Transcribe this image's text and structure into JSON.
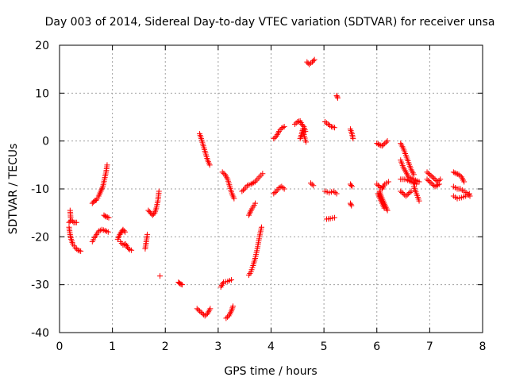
{
  "chart_data": {
    "type": "scatter",
    "title": "Day 003 of 2014, Sidereal Day-to-day VTEC variation (SDTVAR) for receiver unsa",
    "xlabel": "GPS time / hours",
    "ylabel": "SDTVAR / TECUs",
    "xlim": [
      0,
      8
    ],
    "ylim": [
      -40,
      20
    ],
    "xticks": [
      0,
      1,
      2,
      3,
      4,
      5,
      6,
      7,
      8
    ],
    "yticks": [
      -40,
      -30,
      -20,
      -10,
      0,
      10,
      20
    ],
    "grid": true,
    "marker": "+",
    "color": "#ff0000",
    "segments": [
      [
        [
          0.18,
          -17
        ],
        [
          0.22,
          -16.5
        ],
        [
          0.27,
          -17
        ],
        [
          0.32,
          -17
        ]
      ],
      [
        [
          0.2,
          -14.5
        ],
        [
          0.21,
          -16
        ]
      ],
      [
        [
          0.18,
          -18
        ],
        [
          0.2,
          -19.5
        ],
        [
          0.22,
          -20.5
        ],
        [
          0.25,
          -21.5
        ],
        [
          0.3,
          -22.3
        ],
        [
          0.35,
          -22.8
        ],
        [
          0.4,
          -23
        ]
      ],
      [
        [
          0.62,
          -21
        ],
        [
          0.66,
          -20.2
        ],
        [
          0.7,
          -19.5
        ],
        [
          0.74,
          -18.8
        ],
        [
          0.8,
          -18.5
        ],
        [
          0.86,
          -18.7
        ],
        [
          0.92,
          -19
        ]
      ],
      [
        [
          0.62,
          -13
        ],
        [
          0.66,
          -12.5
        ],
        [
          0.7,
          -12.3
        ],
        [
          0.74,
          -11.5
        ],
        [
          0.78,
          -10.5
        ],
        [
          0.82,
          -9.5
        ],
        [
          0.85,
          -8
        ],
        [
          0.88,
          -6.5
        ],
        [
          0.9,
          -5
        ]
      ],
      [
        [
          0.84,
          -15.5
        ],
        [
          0.88,
          -15.8
        ],
        [
          0.93,
          -16
        ]
      ],
      [
        [
          1.1,
          -20.5
        ],
        [
          1.14,
          -19.5
        ],
        [
          1.17,
          -19
        ],
        [
          1.2,
          -18.5
        ],
        [
          1.24,
          -19
        ]
      ],
      [
        [
          1.15,
          -21
        ],
        [
          1.2,
          -21.7
        ],
        [
          1.25,
          -21.5
        ],
        [
          1.3,
          -22.5
        ],
        [
          1.36,
          -22.8
        ]
      ],
      [
        [
          1.62,
          -22.5
        ],
        [
          1.64,
          -21
        ],
        [
          1.66,
          -19.5
        ]
      ],
      [
        [
          1.68,
          -14.5
        ],
        [
          1.72,
          -15
        ],
        [
          1.76,
          -15.5
        ],
        [
          1.8,
          -15
        ],
        [
          1.83,
          -14
        ],
        [
          1.86,
          -12.5
        ],
        [
          1.88,
          -10.5
        ]
      ],
      [
        [
          1.9,
          -28.2
        ]
      ],
      [
        [
          2.25,
          -29.5
        ],
        [
          2.28,
          -29.8
        ],
        [
          2.32,
          -30
        ]
      ],
      [
        [
          2.6,
          -35
        ],
        [
          2.65,
          -35.5
        ],
        [
          2.7,
          -36
        ],
        [
          2.75,
          -36.5
        ],
        [
          2.8,
          -36
        ],
        [
          2.85,
          -35
        ]
      ],
      [
        [
          2.65,
          1.5
        ],
        [
          2.68,
          0.5
        ],
        [
          2.72,
          -1
        ],
        [
          2.76,
          -2.5
        ],
        [
          2.8,
          -4
        ],
        [
          2.84,
          -5
        ]
      ],
      [
        [
          3.05,
          -30.5
        ],
        [
          3.1,
          -29.5
        ],
        [
          3.18,
          -29.3
        ],
        [
          3.25,
          -29
        ]
      ],
      [
        [
          3.15,
          -37
        ],
        [
          3.2,
          -36.5
        ],
        [
          3.25,
          -35.5
        ],
        [
          3.28,
          -34.5
        ]
      ],
      [
        [
          3.08,
          -6.5
        ],
        [
          3.13,
          -7
        ],
        [
          3.18,
          -8
        ],
        [
          3.22,
          -9.5
        ],
        [
          3.26,
          -11
        ],
        [
          3.3,
          -12
        ]
      ],
      [
        [
          3.45,
          -10.5
        ],
        [
          3.5,
          -10
        ],
        [
          3.55,
          -9.3
        ],
        [
          3.62,
          -9
        ],
        [
          3.7,
          -8.5
        ],
        [
          3.78,
          -7.5
        ],
        [
          3.84,
          -6.8
        ]
      ],
      [
        [
          3.58,
          -15.5
        ],
        [
          3.62,
          -14.5
        ],
        [
          3.66,
          -13.8
        ],
        [
          3.7,
          -13
        ]
      ],
      [
        [
          3.58,
          -28
        ],
        [
          3.62,
          -27.3
        ],
        [
          3.66,
          -26
        ],
        [
          3.7,
          -24.5
        ],
        [
          3.74,
          -22.5
        ],
        [
          3.78,
          -20
        ],
        [
          3.82,
          -18
        ]
      ],
      [
        [
          4.05,
          -11
        ],
        [
          4.1,
          -10.5
        ],
        [
          4.15,
          -9.8
        ],
        [
          4.2,
          -9.5
        ],
        [
          4.25,
          -10
        ]
      ],
      [
        [
          4.05,
          0.5
        ],
        [
          4.1,
          1
        ],
        [
          4.15,
          2
        ],
        [
          4.2,
          2.7
        ],
        [
          4.25,
          3
        ]
      ],
      [
        [
          4.45,
          3.5
        ],
        [
          4.5,
          4
        ],
        [
          4.55,
          4.2
        ],
        [
          4.58,
          3.5
        ],
        [
          4.62,
          3
        ],
        [
          4.65,
          2
        ]
      ],
      [
        [
          4.55,
          0.5
        ],
        [
          4.58,
          1.5
        ],
        [
          4.6,
          2.5
        ],
        [
          4.63,
          1
        ],
        [
          4.66,
          -0.2
        ]
      ],
      [
        [
          4.68,
          16.5
        ],
        [
          4.72,
          16
        ],
        [
          4.78,
          16.5
        ],
        [
          4.82,
          17
        ]
      ],
      [
        [
          4.75,
          -8.8
        ],
        [
          4.8,
          -9.3
        ]
      ],
      [
        [
          5.02,
          4
        ],
        [
          5.08,
          3.5
        ],
        [
          5.14,
          3
        ],
        [
          5.2,
          2.8
        ]
      ],
      [
        [
          5.02,
          -10.5
        ],
        [
          5.1,
          -10.8
        ],
        [
          5.18,
          -10.5
        ],
        [
          5.24,
          -11
        ]
      ],
      [
        [
          5.05,
          -16.3
        ],
        [
          5.12,
          -16.2
        ],
        [
          5.2,
          -16
        ]
      ],
      [
        [
          5.24,
          9.5
        ],
        [
          5.26,
          9
        ]
      ],
      [
        [
          5.5,
          2.5
        ],
        [
          5.53,
          1.5
        ],
        [
          5.55,
          0.5
        ]
      ],
      [
        [
          5.5,
          -9
        ],
        [
          5.53,
          -9.5
        ]
      ],
      [
        [
          5.5,
          -13
        ],
        [
          5.52,
          -13.5
        ]
      ],
      [
        [
          6.0,
          -0.5
        ],
        [
          6.05,
          -0.8
        ],
        [
          6.1,
          -1
        ],
        [
          6.15,
          -0.5
        ],
        [
          6.2,
          0
        ]
      ],
      [
        [
          6.0,
          -9
        ],
        [
          6.05,
          -9.5
        ],
        [
          6.1,
          -10
        ],
        [
          6.15,
          -9
        ],
        [
          6.22,
          -8.5
        ]
      ],
      [
        [
          6.05,
          -10.5
        ],
        [
          6.08,
          -11.5
        ],
        [
          6.12,
          -12.5
        ],
        [
          6.16,
          -13.5
        ],
        [
          6.2,
          -14.5
        ]
      ],
      [
        [
          6.02,
          -11
        ],
        [
          6.06,
          -12
        ],
        [
          6.1,
          -13
        ],
        [
          6.14,
          -14
        ]
      ],
      [
        [
          6.45,
          -0.5
        ],
        [
          6.5,
          -1.5
        ],
        [
          6.55,
          -3
        ],
        [
          6.6,
          -4.5
        ],
        [
          6.65,
          -6
        ],
        [
          6.7,
          -7
        ]
      ],
      [
        [
          6.45,
          -4
        ],
        [
          6.5,
          -5.5
        ],
        [
          6.55,
          -6.5
        ],
        [
          6.6,
          -7.5
        ],
        [
          6.7,
          -8
        ],
        [
          6.8,
          -8.5
        ]
      ],
      [
        [
          6.45,
          -8
        ],
        [
          6.55,
          -8
        ],
        [
          6.65,
          -8.5
        ],
        [
          6.75,
          -9
        ]
      ],
      [
        [
          6.45,
          -10.5
        ],
        [
          6.5,
          -11
        ],
        [
          6.55,
          -11.5
        ],
        [
          6.6,
          -11
        ],
        [
          6.65,
          -10.5
        ]
      ],
      [
        [
          6.7,
          -9.5
        ],
        [
          6.75,
          -11
        ],
        [
          6.8,
          -12.5
        ]
      ],
      [
        [
          6.95,
          -6.5
        ],
        [
          7.0,
          -7
        ],
        [
          7.05,
          -7.5
        ],
        [
          7.1,
          -8
        ],
        [
          7.15,
          -8.5
        ],
        [
          7.2,
          -8
        ]
      ],
      [
        [
          6.95,
          -8
        ],
        [
          7.0,
          -8.5
        ],
        [
          7.05,
          -9
        ],
        [
          7.1,
          -9.5
        ],
        [
          7.18,
          -9
        ]
      ],
      [
        [
          7.45,
          -6.5
        ],
        [
          7.5,
          -6.8
        ],
        [
          7.55,
          -7
        ],
        [
          7.6,
          -7.5
        ],
        [
          7.65,
          -8.5
        ]
      ],
      [
        [
          7.45,
          -9.5
        ],
        [
          7.52,
          -10
        ],
        [
          7.58,
          -10
        ],
        [
          7.65,
          -10.5
        ],
        [
          7.72,
          -11
        ],
        [
          7.76,
          -11.5
        ]
      ],
      [
        [
          7.45,
          -11.5
        ],
        [
          7.52,
          -12
        ],
        [
          7.6,
          -11.8
        ],
        [
          7.68,
          -11.5
        ],
        [
          7.75,
          -11
        ]
      ]
    ]
  }
}
